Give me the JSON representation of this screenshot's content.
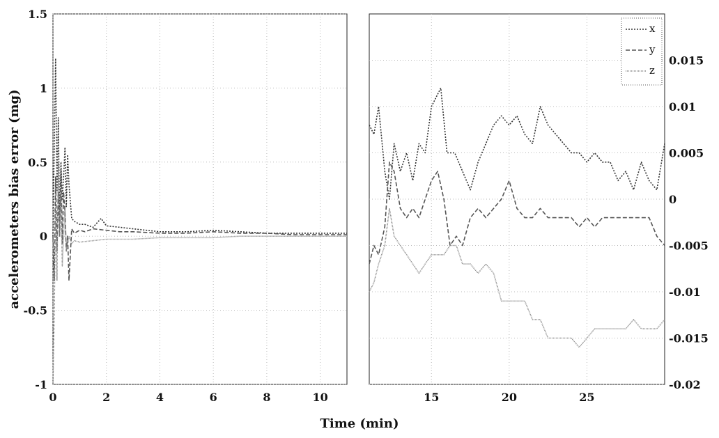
{
  "chart_data": [
    {
      "type": "line",
      "panel": "left",
      "xlabel": "Time (min)",
      "ylabel": "accelerometers bias error (mg)",
      "xlim": [
        0,
        11
      ],
      "ylim": [
        -1,
        1.5
      ],
      "xticks": [
        "0",
        "2",
        "4",
        "6",
        "8",
        "10"
      ],
      "yticks": [
        "-1",
        "-0.5",
        "0",
        "0.5",
        "1",
        "1.5"
      ],
      "grid": true,
      "series": [
        {
          "name": "x",
          "color": "#333333",
          "x": [
            0,
            0.05,
            0.1,
            0.15,
            0.2,
            0.25,
            0.3,
            0.35,
            0.4,
            0.45,
            0.5,
            0.55,
            0.6,
            0.7,
            0.8,
            1.0,
            1.2,
            1.5,
            1.8,
            2.0,
            2.5,
            3.0,
            4.0,
            5.0,
            6.0,
            7.0,
            8.0,
            9.0,
            10.0,
            11.0
          ],
          "y": [
            0.0,
            0.6,
            1.2,
            0.3,
            0.8,
            0.1,
            0.5,
            0.25,
            0.4,
            0.6,
            0.2,
            0.55,
            0.35,
            0.12,
            0.1,
            0.08,
            0.08,
            0.06,
            0.12,
            0.07,
            0.06,
            0.05,
            0.03,
            0.03,
            0.04,
            0.03,
            0.02,
            0.02,
            0.02,
            0.02
          ]
        },
        {
          "name": "y",
          "color": "#555555",
          "x": [
            0,
            0.05,
            0.1,
            0.15,
            0.2,
            0.25,
            0.3,
            0.35,
            0.4,
            0.45,
            0.5,
            0.55,
            0.6,
            0.7,
            0.8,
            1.0,
            1.2,
            1.5,
            2.0,
            2.5,
            3.0,
            4.0,
            5.0,
            6.0,
            7.0,
            8.0,
            9.0,
            10.0,
            11.0
          ],
          "y": [
            0.0,
            -0.3,
            0.4,
            -0.1,
            0.3,
            0.0,
            0.45,
            -0.05,
            0.3,
            0.15,
            -0.1,
            0.0,
            -0.3,
            0.05,
            0.02,
            0.04,
            0.03,
            0.05,
            0.04,
            0.03,
            0.03,
            0.02,
            0.02,
            0.03,
            0.02,
            0.02,
            0.01,
            0.01,
            0.01
          ]
        },
        {
          "name": "z",
          "color": "#888888",
          "x": [
            0,
            0.05,
            0.1,
            0.15,
            0.2,
            0.25,
            0.3,
            0.35,
            0.4,
            0.45,
            0.5,
            0.6,
            0.7,
            0.8,
            1.0,
            1.5,
            2.0,
            3.0,
            4.0,
            5.0,
            6.0,
            7.0,
            8.0,
            9.0,
            10.0,
            11.0
          ],
          "y": [
            -1.0,
            -0.5,
            0.2,
            -0.3,
            0.5,
            0.0,
            0.3,
            -0.2,
            0.0,
            0.2,
            -0.1,
            0.0,
            -0.05,
            -0.03,
            -0.04,
            -0.03,
            -0.02,
            -0.02,
            -0.01,
            -0.01,
            -0.01,
            0.0,
            0.0,
            0.0,
            0.0,
            0.0
          ]
        }
      ]
    },
    {
      "type": "line",
      "panel": "right",
      "xlabel": "Time (min)",
      "ylabel": "",
      "xlim": [
        11,
        30
      ],
      "ylim": [
        -0.02,
        0.02
      ],
      "xticks": [
        "15",
        "20",
        "25"
      ],
      "yticks": [
        "-0.02",
        "-0.015",
        "-0.01",
        "-0.005",
        "0",
        "0.005",
        "0.01",
        "0.015"
      ],
      "grid": true,
      "legend": {
        "position": "top-right",
        "entries": [
          "x",
          "y",
          "z"
        ]
      },
      "series": [
        {
          "name": "x",
          "color": "#333333",
          "x": [
            11.0,
            11.3,
            11.6,
            12.0,
            12.3,
            12.6,
            13.0,
            13.4,
            13.8,
            14.2,
            14.6,
            15.0,
            15.3,
            15.6,
            16.0,
            16.5,
            17.0,
            17.5,
            18.0,
            18.5,
            19.0,
            19.5,
            20.0,
            20.5,
            21.0,
            21.5,
            22.0,
            22.5,
            23.0,
            23.5,
            24.0,
            24.5,
            25.0,
            25.5,
            26.0,
            26.5,
            27.0,
            27.5,
            28.0,
            28.5,
            29.0,
            29.5,
            30.0
          ],
          "y": [
            0.008,
            0.007,
            0.01,
            0.003,
            0.0,
            0.006,
            0.003,
            0.005,
            0.002,
            0.006,
            0.005,
            0.01,
            0.011,
            0.012,
            0.005,
            0.005,
            0.003,
            0.001,
            0.004,
            0.006,
            0.008,
            0.009,
            0.008,
            0.009,
            0.007,
            0.006,
            0.01,
            0.008,
            0.007,
            0.006,
            0.005,
            0.005,
            0.004,
            0.005,
            0.004,
            0.004,
            0.002,
            0.003,
            0.001,
            0.004,
            0.002,
            0.001,
            0.006
          ]
        },
        {
          "name": "y",
          "color": "#555555",
          "x": [
            11.0,
            11.3,
            11.6,
            12.0,
            12.3,
            12.6,
            13.0,
            13.4,
            13.8,
            14.2,
            14.6,
            15.0,
            15.4,
            15.8,
            16.2,
            16.6,
            17.0,
            17.5,
            18.0,
            18.5,
            19.0,
            19.5,
            20.0,
            20.5,
            21.0,
            21.5,
            22.0,
            22.5,
            23.0,
            23.5,
            24.0,
            24.5,
            25.0,
            25.5,
            26.0,
            26.5,
            27.0,
            27.5,
            28.0,
            28.5,
            29.0,
            29.5,
            30.0
          ],
          "y": [
            -0.007,
            -0.005,
            -0.006,
            -0.003,
            0.004,
            0.003,
            -0.001,
            -0.002,
            -0.001,
            -0.002,
            0.0,
            0.002,
            0.003,
            0.0,
            -0.005,
            -0.004,
            -0.005,
            -0.002,
            -0.001,
            -0.002,
            -0.001,
            0.0,
            0.002,
            -0.001,
            -0.002,
            -0.002,
            -0.001,
            -0.002,
            -0.002,
            -0.002,
            -0.002,
            -0.003,
            -0.002,
            -0.003,
            -0.002,
            -0.002,
            -0.002,
            -0.002,
            -0.002,
            -0.002,
            -0.002,
            -0.004,
            -0.005
          ]
        },
        {
          "name": "z",
          "color": "#888888",
          "x": [
            11.0,
            11.3,
            11.6,
            12.0,
            12.3,
            12.6,
            13.0,
            13.4,
            13.8,
            14.2,
            14.6,
            15.0,
            15.4,
            15.8,
            16.2,
            16.6,
            17.0,
            17.5,
            18.0,
            18.5,
            19.0,
            19.5,
            20.0,
            20.5,
            21.0,
            21.5,
            22.0,
            22.5,
            23.0,
            23.5,
            24.0,
            24.5,
            25.0,
            25.5,
            26.0,
            26.5,
            27.0,
            27.5,
            28.0,
            28.5,
            29.0,
            29.5,
            30.0
          ],
          "y": [
            -0.01,
            -0.009,
            -0.007,
            -0.005,
            -0.001,
            -0.004,
            -0.005,
            -0.006,
            -0.007,
            -0.008,
            -0.007,
            -0.006,
            -0.006,
            -0.006,
            -0.005,
            -0.005,
            -0.007,
            -0.007,
            -0.008,
            -0.007,
            -0.008,
            -0.011,
            -0.011,
            -0.011,
            -0.011,
            -0.013,
            -0.013,
            -0.015,
            -0.015,
            -0.015,
            -0.015,
            -0.016,
            -0.015,
            -0.014,
            -0.014,
            -0.014,
            -0.014,
            -0.014,
            -0.013,
            -0.014,
            -0.014,
            -0.014,
            -0.013
          ]
        }
      ]
    }
  ]
}
